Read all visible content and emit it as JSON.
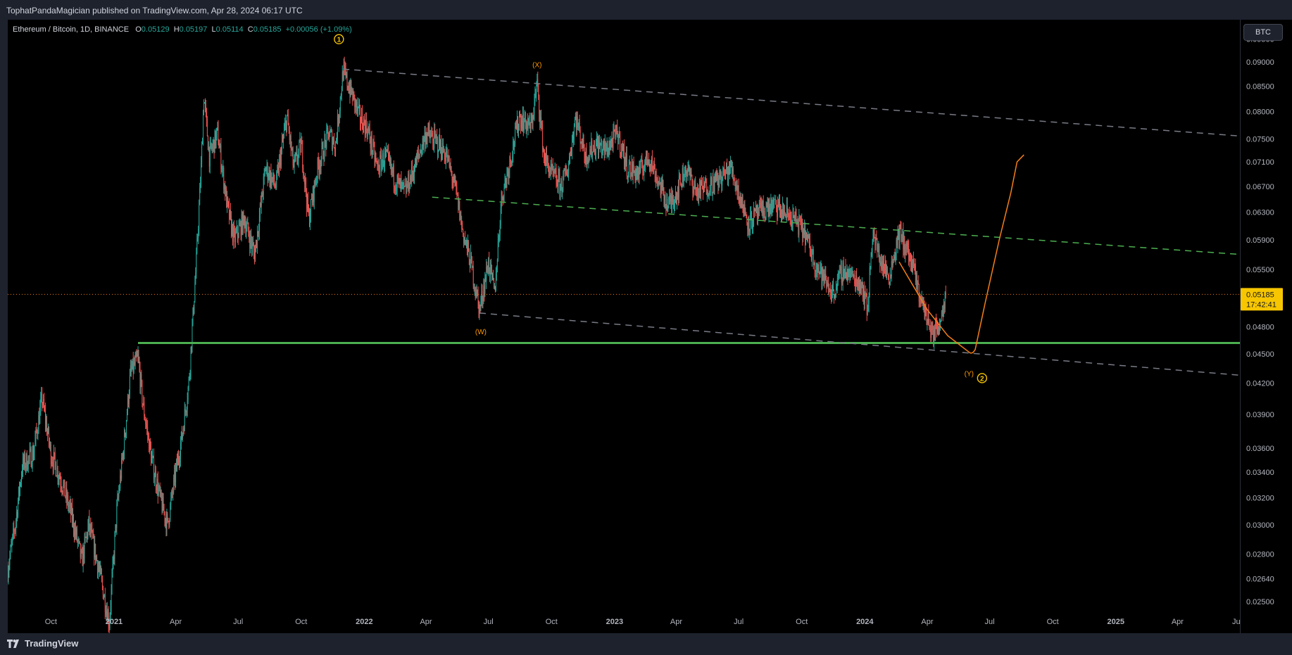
{
  "header": {
    "published_text": "TophatPandaMagician published on TradingView.com, Apr 28, 2024 06:17 UTC"
  },
  "legend": {
    "symbol": "Ethereum / Bitcoin, 1D, BINANCE",
    "open_label": "O",
    "open": "0.05129",
    "high_label": "H",
    "high": "0.05197",
    "low_label": "L",
    "low": "0.05114",
    "close_label": "C",
    "close": "0.05185",
    "change": "+0.00056 (+1.09%)"
  },
  "currency_button": "BTC",
  "footer": {
    "brand": "TradingView",
    "logo_icon": "tradingview-logo-icon"
  },
  "price_tag": {
    "value": "0.05185",
    "countdown": "17:42:41",
    "color": "#f7c600"
  },
  "colors": {
    "up": "#26a69a",
    "down": "#ef5350",
    "channel": "#787b86",
    "midline": "#4caf50",
    "support": "#4caf50",
    "projection": "#f57f17",
    "wave_label": "#ff9800",
    "circle_label": "#f7c600"
  },
  "chart_data": {
    "type": "candlestick",
    "title": "",
    "symbol": "ETH/BTC",
    "interval": "1D",
    "exchange": "BINANCE",
    "y_scale": "log",
    "y_ticks": [
      "0.09500",
      "0.09000",
      "0.08500",
      "0.08000",
      "0.07500",
      "0.07100",
      "0.06700",
      "0.06300",
      "0.05900",
      "0.05500",
      "0.04800",
      "0.04500",
      "0.04200",
      "0.03900",
      "0.03600",
      "0.03400",
      "0.03200",
      "0.03000",
      "0.02800",
      "0.02640",
      "0.02500"
    ],
    "x_ticks": [
      "Oct",
      "2021",
      "Apr",
      "Jul",
      "Oct",
      "2022",
      "Apr",
      "Jul",
      "Oct",
      "2023",
      "Apr",
      "Jul",
      "Oct",
      "2024",
      "Apr",
      "Jul",
      "Oct",
      "2025",
      "Apr",
      "Jul"
    ],
    "x_range": [
      "2020-07-30",
      "2025-07-01"
    ],
    "last_price": 0.05185,
    "price_path": [
      [
        "2020-07-30",
        0.027
      ],
      [
        "2020-08-10",
        0.03
      ],
      [
        "2020-08-20",
        0.0345
      ],
      [
        "2020-09-05",
        0.0355
      ],
      [
        "2020-09-18",
        0.0405
      ],
      [
        "2020-10-01",
        0.0355
      ],
      [
        "2020-10-15",
        0.0335
      ],
      [
        "2020-11-01",
        0.0305
      ],
      [
        "2020-11-15",
        0.0275
      ],
      [
        "2020-11-25",
        0.03
      ],
      [
        "2020-12-10",
        0.027
      ],
      [
        "2020-12-25",
        0.0238
      ],
      [
        "2021-01-05",
        0.031
      ],
      [
        "2021-01-15",
        0.036
      ],
      [
        "2021-01-25",
        0.043
      ],
      [
        "2021-02-05",
        0.0445
      ],
      [
        "2021-02-12",
        0.04
      ],
      [
        "2021-02-25",
        0.035
      ],
      [
        "2021-03-10",
        0.0318
      ],
      [
        "2021-03-20",
        0.03
      ],
      [
        "2021-04-01",
        0.034
      ],
      [
        "2021-04-10",
        0.037
      ],
      [
        "2021-04-20",
        0.042
      ],
      [
        "2021-05-01",
        0.056
      ],
      [
        "2021-05-08",
        0.07
      ],
      [
        "2021-05-12",
        0.083
      ],
      [
        "2021-05-20",
        0.072
      ],
      [
        "2021-06-01",
        0.076
      ],
      [
        "2021-06-15",
        0.064
      ],
      [
        "2021-06-25",
        0.059
      ],
      [
        "2021-07-10",
        0.062
      ],
      [
        "2021-07-25",
        0.057
      ],
      [
        "2021-08-10",
        0.07
      ],
      [
        "2021-08-25",
        0.067
      ],
      [
        "2021-09-10",
        0.079
      ],
      [
        "2021-09-20",
        0.07
      ],
      [
        "2021-10-01",
        0.074
      ],
      [
        "2021-10-12",
        0.062
      ],
      [
        "2021-10-25",
        0.07
      ],
      [
        "2021-11-10",
        0.076
      ],
      [
        "2021-11-20",
        0.074
      ],
      [
        "2021-12-01",
        0.088
      ],
      [
        "2021-12-15",
        0.083
      ],
      [
        "2021-12-25",
        0.079
      ],
      [
        "2022-01-05",
        0.077
      ],
      [
        "2022-01-20",
        0.07
      ],
      [
        "2022-02-01",
        0.072
      ],
      [
        "2022-02-15",
        0.068
      ],
      [
        "2022-03-01",
        0.066
      ],
      [
        "2022-03-15",
        0.07
      ],
      [
        "2022-04-01",
        0.076
      ],
      [
        "2022-04-20",
        0.074
      ],
      [
        "2022-05-01",
        0.072
      ],
      [
        "2022-05-15",
        0.066
      ],
      [
        "2022-05-25",
        0.06
      ],
      [
        "2022-06-05",
        0.056
      ],
      [
        "2022-06-18",
        0.05
      ],
      [
        "2022-07-01",
        0.056
      ],
      [
        "2022-07-10",
        0.052
      ],
      [
        "2022-07-20",
        0.065
      ],
      [
        "2022-08-01",
        0.071
      ],
      [
        "2022-08-15",
        0.079
      ],
      [
        "2022-09-01",
        0.077
      ],
      [
        "2022-09-10",
        0.0855
      ],
      [
        "2022-09-20",
        0.072
      ],
      [
        "2022-10-01",
        0.069
      ],
      [
        "2022-10-15",
        0.067
      ],
      [
        "2022-10-25",
        0.07
      ],
      [
        "2022-11-05",
        0.079
      ],
      [
        "2022-11-20",
        0.072
      ],
      [
        "2022-12-05",
        0.074
      ],
      [
        "2022-12-20",
        0.073
      ],
      [
        "2023-01-05",
        0.076
      ],
      [
        "2023-01-20",
        0.07
      ],
      [
        "2023-02-05",
        0.069
      ],
      [
        "2023-02-20",
        0.072
      ],
      [
        "2023-03-05",
        0.068
      ],
      [
        "2023-03-20",
        0.064
      ],
      [
        "2023-04-01",
        0.066
      ],
      [
        "2023-04-15",
        0.07
      ],
      [
        "2023-05-01",
        0.066
      ],
      [
        "2023-05-15",
        0.067
      ],
      [
        "2023-06-01",
        0.068
      ],
      [
        "2023-06-20",
        0.07
      ],
      [
        "2023-07-01",
        0.066
      ],
      [
        "2023-07-15",
        0.0615
      ],
      [
        "2023-08-01",
        0.063
      ],
      [
        "2023-08-20",
        0.064
      ],
      [
        "2023-09-05",
        0.063
      ],
      [
        "2023-09-20",
        0.062
      ],
      [
        "2023-10-05",
        0.06
      ],
      [
        "2023-10-20",
        0.056
      ],
      [
        "2023-11-01",
        0.054
      ],
      [
        "2023-11-15",
        0.052
      ],
      [
        "2023-12-01",
        0.055
      ],
      [
        "2023-12-15",
        0.054
      ],
      [
        "2023-12-28",
        0.053
      ],
      [
        "2024-01-05",
        0.05
      ],
      [
        "2024-01-12",
        0.06
      ],
      [
        "2024-01-25",
        0.056
      ],
      [
        "2024-02-05",
        0.054
      ],
      [
        "2024-02-20",
        0.06
      ],
      [
        "2024-03-01",
        0.058
      ],
      [
        "2024-03-12",
        0.055
      ],
      [
        "2024-03-20",
        0.052
      ],
      [
        "2024-04-01",
        0.049
      ],
      [
        "2024-04-10",
        0.047
      ],
      [
        "2024-04-20",
        0.049
      ],
      [
        "2024-04-28",
        0.05185
      ]
    ],
    "drawings": {
      "channel_upper": [
        [
          "2021-12-01",
          0.0885
        ],
        [
          "2025-07-01",
          0.0755
        ]
      ],
      "channel_lower": [
        [
          "2022-06-18",
          0.0496
        ],
        [
          "2025-06-30",
          0.0428
        ]
      ],
      "channel_mid": [
        [
          "2022-04-10",
          0.0653
        ],
        [
          "2025-07-01",
          0.057
        ]
      ],
      "support_level": [
        [
          "2021-02-05",
          0.0462
        ],
        [
          "2025-07-01",
          0.0462
        ]
      ],
      "projection_path": [
        [
          "2024-02-20",
          0.056
        ],
        [
          "2024-04-01",
          0.05
        ],
        [
          "2024-05-01",
          0.047
        ],
        [
          "2024-06-01",
          0.0452
        ],
        [
          "2024-06-10",
          0.0455
        ],
        [
          "2024-06-25",
          0.051
        ],
        [
          "2024-07-15",
          0.059
        ],
        [
          "2024-08-01",
          0.066
        ],
        [
          "2024-08-10",
          0.071
        ],
        [
          "2024-08-20",
          0.0722
        ]
      ]
    },
    "wave_labels": [
      {
        "text": "1",
        "style": "circle",
        "date": "2021-11-25",
        "price": 0.095
      },
      {
        "text": "(X)",
        "style": "plain",
        "date": "2022-09-10",
        "price": 0.0895
      },
      {
        "text": "(W)",
        "style": "plain",
        "date": "2022-06-20",
        "price": 0.0475
      },
      {
        "text": "(Y)",
        "style": "plain",
        "date": "2024-06-01",
        "price": 0.043
      },
      {
        "text": "2",
        "style": "circle",
        "date": "2024-06-20",
        "price": 0.0425
      }
    ]
  }
}
